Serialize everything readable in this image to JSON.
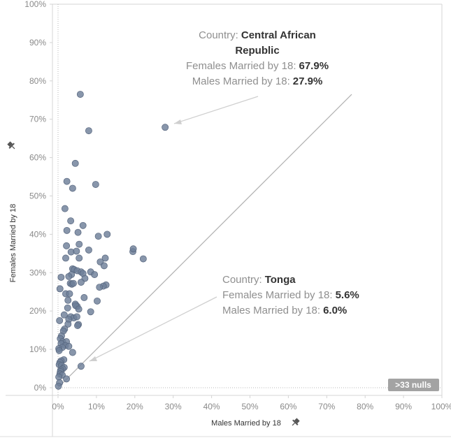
{
  "chart_data": {
    "type": "scatter",
    "xlabel": "Males Married by 18",
    "ylabel": "Females Married by 18",
    "xlim": [
      0,
      100
    ],
    "ylim": [
      0,
      100
    ],
    "x_ticks": [
      "0%",
      "10%",
      "20%",
      "30%",
      "40%",
      "50%",
      "60%",
      "70%",
      "80%",
      "90%",
      "100%"
    ],
    "y_ticks": [
      "0%",
      "10%",
      "20%",
      "30%",
      "40%",
      "50%",
      "60%",
      "70%",
      "80%",
      "90%",
      "100%"
    ],
    "point_color": "#6e7f99",
    "grid": false,
    "reference_line": "diagonal",
    "nulls_badge": ">33 nulls",
    "annotations": [
      {
        "key_country": "Country:",
        "country": "Central African Republic",
        "country_line1": "Central African",
        "country_line2": "Republic",
        "key_females": "Females Married by 18:",
        "females": "67.9%",
        "key_males": "Males Married by 18:",
        "males": "27.9%",
        "x": 27.9,
        "y": 67.9
      },
      {
        "key_country": "Country:",
        "country": "Tonga",
        "key_females": "Females Married by 18:",
        "females": "5.6%",
        "key_males": "Males Married by 18:",
        "males": "6.0%",
        "x": 6.0,
        "y": 5.6
      }
    ],
    "points": [
      [
        5.8,
        76.5
      ],
      [
        8.0,
        67.0
      ],
      [
        27.9,
        67.9
      ],
      [
        4.5,
        58.5
      ],
      [
        2.3,
        53.8
      ],
      [
        9.8,
        53.0
      ],
      [
        3.8,
        52.0
      ],
      [
        1.8,
        46.7
      ],
      [
        3.3,
        43.5
      ],
      [
        6.5,
        42.3
      ],
      [
        2.3,
        41.0
      ],
      [
        5.2,
        40.5
      ],
      [
        10.5,
        39.5
      ],
      [
        12.8,
        40.0
      ],
      [
        2.2,
        37.0
      ],
      [
        5.5,
        37.4
      ],
      [
        8.0,
        35.9
      ],
      [
        3.4,
        35.4
      ],
      [
        4.8,
        35.6
      ],
      [
        19.5,
        35.5
      ],
      [
        19.6,
        36.2
      ],
      [
        22.2,
        33.6
      ],
      [
        5.5,
        33.8
      ],
      [
        2.0,
        33.8
      ],
      [
        12.3,
        33.8
      ],
      [
        11.0,
        32.8
      ],
      [
        12.0,
        31.8
      ],
      [
        3.8,
        31.0
      ],
      [
        4.2,
        30.8
      ],
      [
        5.0,
        30.5
      ],
      [
        6.0,
        30.2
      ],
      [
        6.5,
        29.8
      ],
      [
        8.5,
        30.2
      ],
      [
        9.5,
        29.5
      ],
      [
        3.5,
        29.5
      ],
      [
        2.8,
        29.0
      ],
      [
        0.8,
        28.8
      ],
      [
        7.0,
        28.5
      ],
      [
        3.2,
        27.2
      ],
      [
        3.6,
        27.0
      ],
      [
        4.0,
        27.2
      ],
      [
        6.0,
        27.5
      ],
      [
        12.5,
        26.8
      ],
      [
        11.8,
        26.5
      ],
      [
        10.8,
        26.2
      ],
      [
        0.5,
        25.8
      ],
      [
        2.0,
        24.5
      ],
      [
        3.0,
        24.5
      ],
      [
        6.8,
        23.5
      ],
      [
        10.2,
        22.6
      ],
      [
        2.6,
        22.8
      ],
      [
        4.5,
        21.8
      ],
      [
        5.0,
        21.2
      ],
      [
        4.6,
        21.4
      ],
      [
        2.5,
        20.8
      ],
      [
        5.4,
        20.5
      ],
      [
        8.5,
        19.8
      ],
      [
        1.6,
        19.0
      ],
      [
        3.3,
        18.5
      ],
      [
        4.1,
        18.2
      ],
      [
        4.9,
        18.5
      ],
      [
        2.8,
        17.8
      ],
      [
        0.4,
        17.5
      ],
      [
        5.3,
        16.5
      ],
      [
        5.1,
        16.2
      ],
      [
        2.6,
        16.6
      ],
      [
        1.7,
        15.3
      ],
      [
        1.4,
        14.8
      ],
      [
        0.9,
        13.5
      ],
      [
        0.6,
        12.8
      ],
      [
        1.2,
        12.0
      ],
      [
        2.2,
        12.0
      ],
      [
        0.8,
        11.5
      ],
      [
        1.9,
        11.0
      ],
      [
        2.8,
        10.8
      ],
      [
        1.1,
        10.5
      ],
      [
        0.2,
        10.2
      ],
      [
        0.3,
        9.7
      ],
      [
        3.8,
        9.2
      ],
      [
        1.5,
        7.3
      ],
      [
        0.8,
        7.0
      ],
      [
        0.5,
        6.6
      ],
      [
        0.3,
        6.0
      ],
      [
        0.9,
        5.8
      ],
      [
        1.6,
        5.3
      ],
      [
        1.2,
        4.9
      ],
      [
        0.7,
        4.6
      ],
      [
        0.6,
        4.2
      ],
      [
        0.5,
        3.6
      ],
      [
        1.1,
        3.3
      ],
      [
        0.2,
        2.8
      ],
      [
        2.2,
        2.3
      ],
      [
        0.4,
        1.3
      ],
      [
        0.1,
        0.4
      ],
      [
        6.0,
        5.6
      ]
    ]
  }
}
